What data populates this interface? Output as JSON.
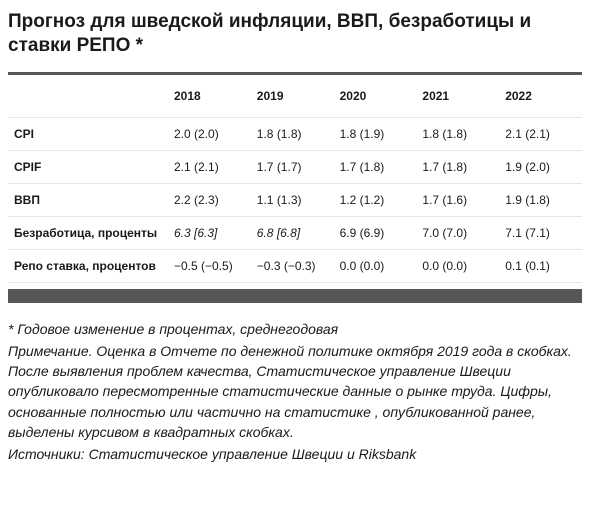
{
  "title": "Прогноз для шведской инфляции, ВВП, безработицы и ставки РЕПО *",
  "table": {
    "columns": [
      "2018",
      "2019",
      "2020",
      "2021",
      "2022"
    ],
    "rows": [
      {
        "label": "CPI",
        "italic_first_two": false,
        "cells": [
          "2.0 (2.0)",
          "1.8 (1.8)",
          "1.8 (1.9)",
          "1.8 (1.8)",
          "2.1 (2.1)"
        ]
      },
      {
        "label": "CPIF",
        "italic_first_two": false,
        "cells": [
          "2.1 (2.1)",
          "1.7 (1.7)",
          "1.7 (1.8)",
          "1.7 (1.8)",
          "1.9 (2.0)"
        ]
      },
      {
        "label": "ВВП",
        "italic_first_two": false,
        "cells": [
          "2.2 (2.3)",
          "1.1 (1.3)",
          "1.2 (1.2)",
          "1.7 (1.6)",
          "1.9 (1.8)"
        ]
      },
      {
        "label": "Безработица, проценты",
        "italic_first_two": true,
        "cells": [
          "6.3 [6.3]",
          "6.8 [6.8]",
          "6.9 (6.9)",
          "7.0 (7.0)",
          "7.1 (7.1)"
        ]
      },
      {
        "label": "Репо ставка, процентов",
        "italic_first_two": false,
        "cells": [
          "−0.5 (−0.5)",
          "−0.3 (−0.3)",
          "0.0 (0.0)",
          "0.0 (0.0)",
          "0.1 (0.1)"
        ]
      }
    ],
    "border_color": "#e6e6e6",
    "bar_color": "#565656"
  },
  "notes": {
    "line1": "* Годовое изменение в процентах, среднегодовая",
    "line2": "Примечание. Оценка в Отчете по денежной политике октября 2019 года в скобках. После выявления проблем качества, Статистическое управление Швеции опубликовало пересмотренные статистические данные о рынке труда. Цифры, основанные полностью или частично на статистике , опубликованной ранее, выделены курсивом в квадратных скобках.",
    "line3": "Источники: Статистическое управление Швеции и Riksbank"
  }
}
